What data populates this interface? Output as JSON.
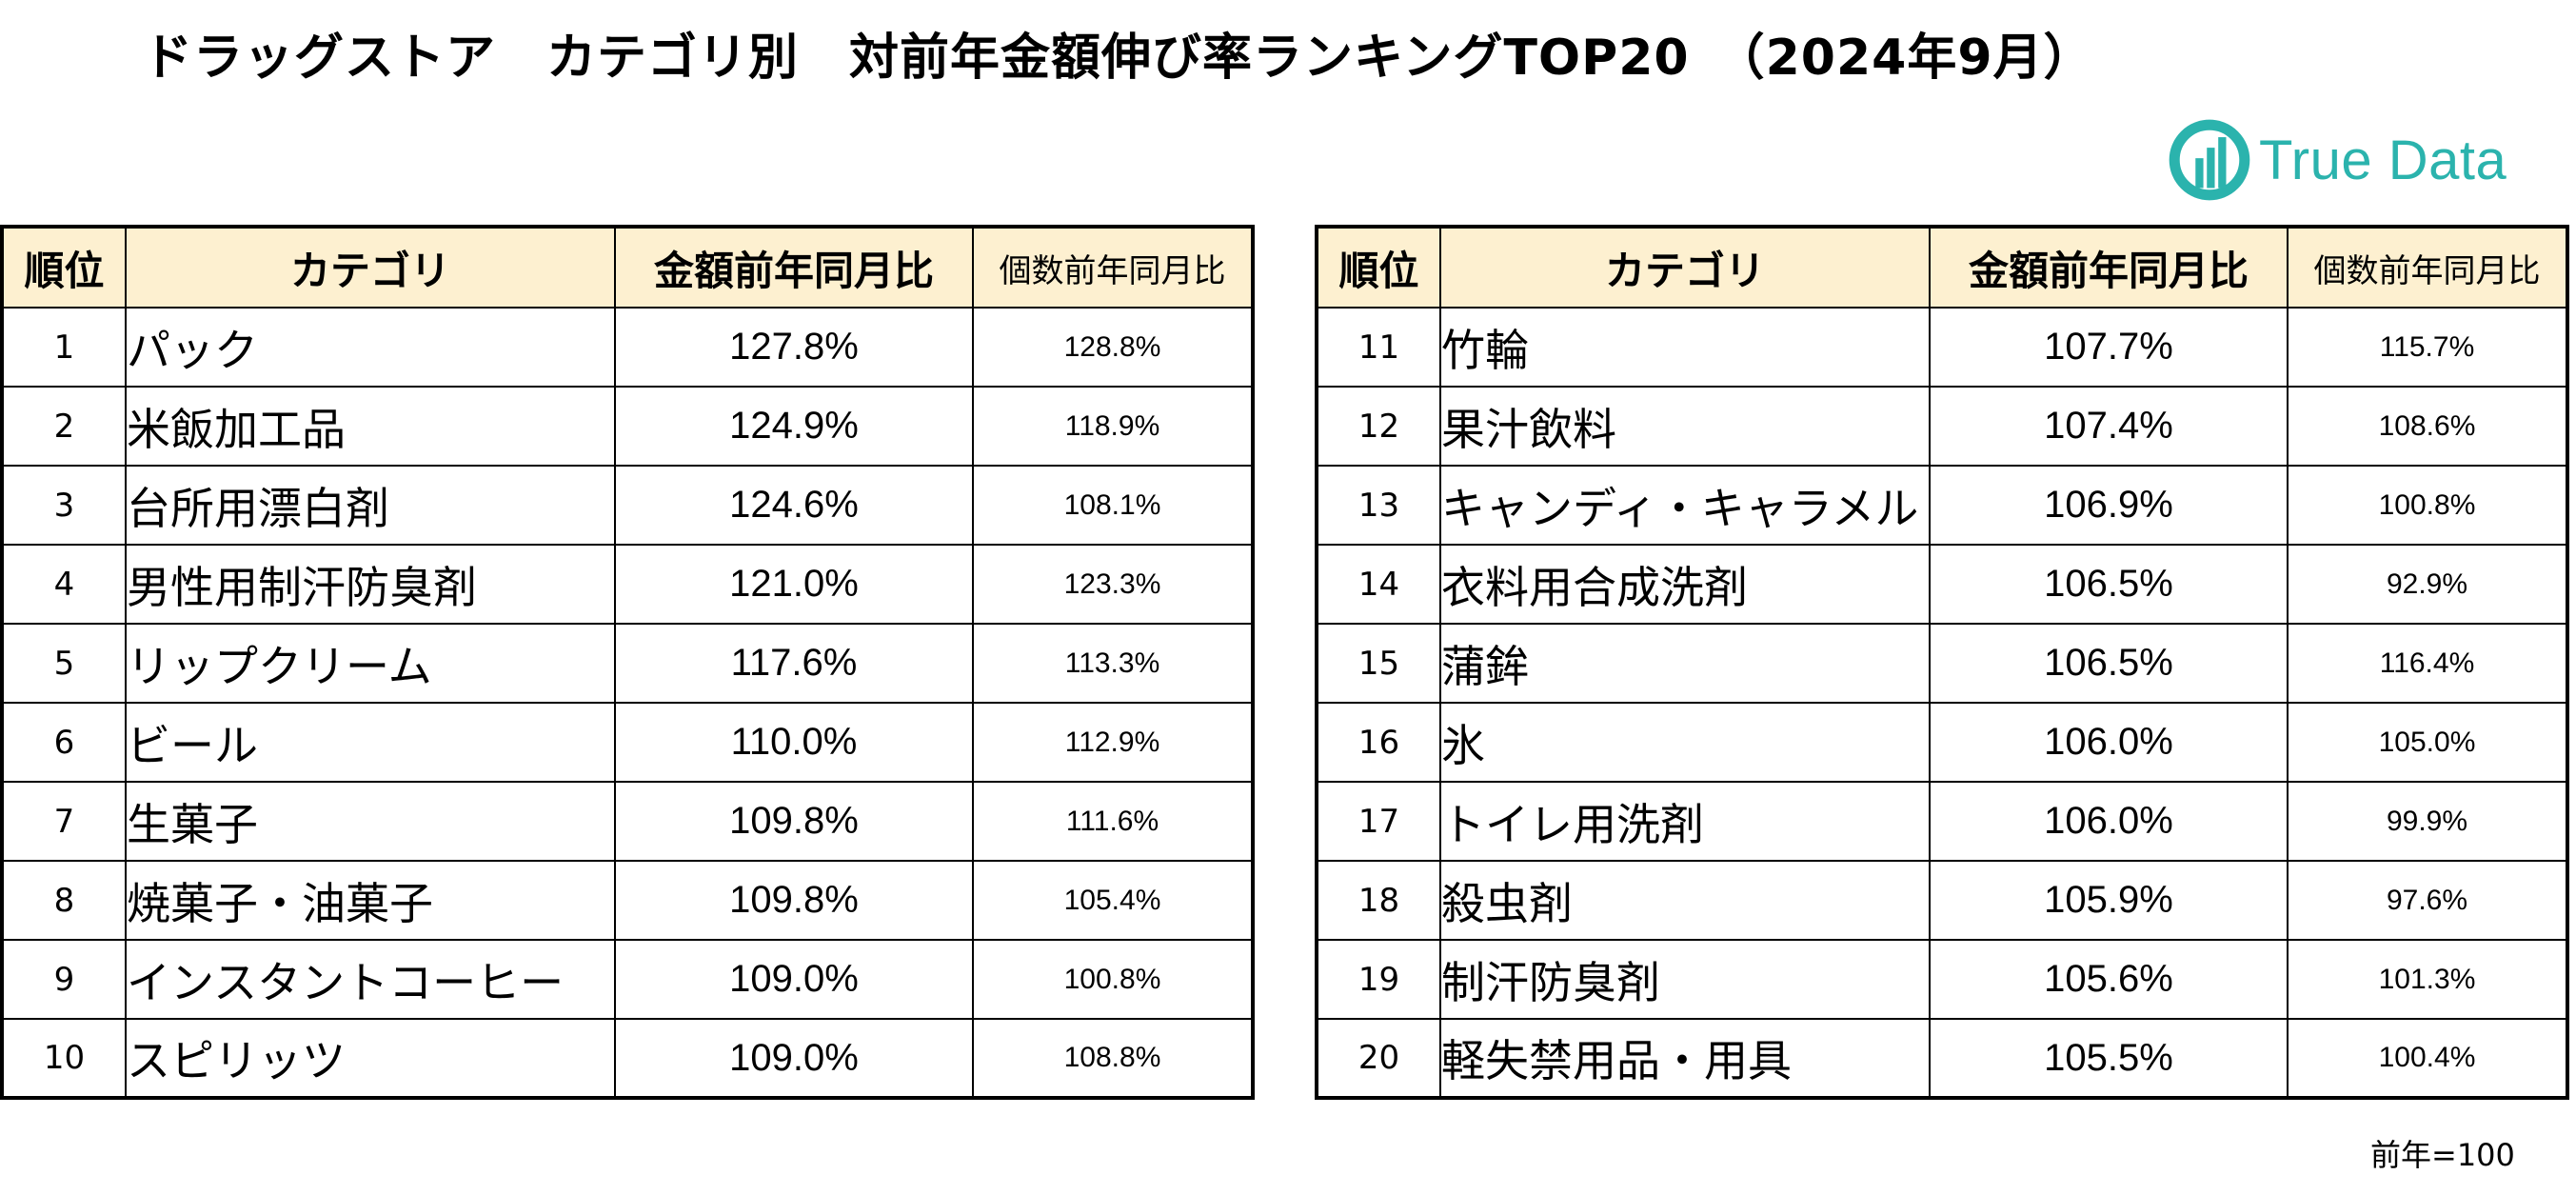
{
  "title": "ドラッグストア　カテゴリ別　対前年金額伸び率ランキングTOP20　（2024年9月）",
  "logo": {
    "text": "True Data",
    "icon": "bar-chart-circle-icon",
    "color": "#2bb3ad"
  },
  "colors": {
    "header_bg": "#fdf0d0",
    "border": "#000000"
  },
  "headers": {
    "rank": "順位",
    "category": "カテゴリ",
    "amount": "金額前年同月比",
    "count": "個数前年同月比"
  },
  "left_rows": [
    {
      "rank": "1",
      "category": "パック",
      "amount": "127.8%",
      "count": "128.8%"
    },
    {
      "rank": "2",
      "category": "米飯加工品",
      "amount": "124.9%",
      "count": "118.9%"
    },
    {
      "rank": "3",
      "category": "台所用漂白剤",
      "amount": "124.6%",
      "count": "108.1%"
    },
    {
      "rank": "4",
      "category": "男性用制汗防臭剤",
      "amount": "121.0%",
      "count": "123.3%"
    },
    {
      "rank": "5",
      "category": "リップクリーム",
      "amount": "117.6%",
      "count": "113.3%"
    },
    {
      "rank": "6",
      "category": "ビール",
      "amount": "110.0%",
      "count": "112.9%"
    },
    {
      "rank": "7",
      "category": "生菓子",
      "amount": "109.8%",
      "count": "111.6%"
    },
    {
      "rank": "8",
      "category": "焼菓子・油菓子",
      "amount": "109.8%",
      "count": "105.4%"
    },
    {
      "rank": "9",
      "category": "インスタントコーヒー",
      "amount": "109.0%",
      "count": "100.8%"
    },
    {
      "rank": "10",
      "category": "スピリッツ",
      "amount": "109.0%",
      "count": "108.8%"
    }
  ],
  "right_rows": [
    {
      "rank": "11",
      "category": "竹輪",
      "amount": "107.7%",
      "count": "115.7%"
    },
    {
      "rank": "12",
      "category": "果汁飲料",
      "amount": "107.4%",
      "count": "108.6%"
    },
    {
      "rank": "13",
      "category": "キャンディ・キャラメル",
      "amount": "106.9%",
      "count": "100.8%"
    },
    {
      "rank": "14",
      "category": "衣料用合成洗剤",
      "amount": "106.5%",
      "count": "92.9%"
    },
    {
      "rank": "15",
      "category": "蒲鉾",
      "amount": "106.5%",
      "count": "116.4%"
    },
    {
      "rank": "16",
      "category": "氷",
      "amount": "106.0%",
      "count": "105.0%"
    },
    {
      "rank": "17",
      "category": "トイレ用洗剤",
      "amount": "106.0%",
      "count": "99.9%"
    },
    {
      "rank": "18",
      "category": "殺虫剤",
      "amount": "105.9%",
      "count": "97.6%"
    },
    {
      "rank": "19",
      "category": "制汗防臭剤",
      "amount": "105.6%",
      "count": "101.3%"
    },
    {
      "rank": "20",
      "category": "軽失禁用品・用具",
      "amount": "105.5%",
      "count": "100.4%"
    }
  ],
  "note": "前年=100"
}
